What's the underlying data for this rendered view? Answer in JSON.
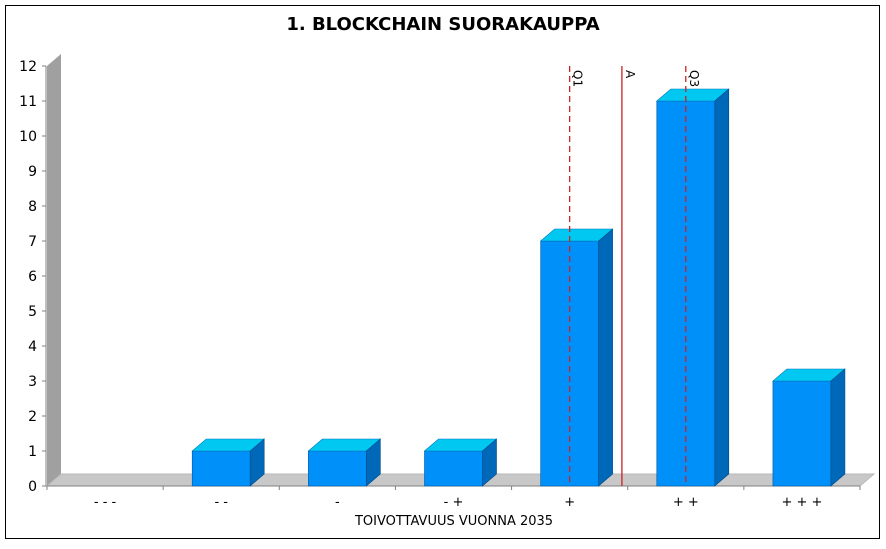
{
  "chart_data": {
    "type": "bar",
    "title": "1. BLOCKCHAIN SUORAKAUPPA",
    "xlabel": "TOIVOTTAVUUS VUONNA 2035",
    "ylabel": "",
    "categories": [
      "- - -",
      "- -",
      "-",
      "- +",
      "+",
      "+ +",
      "+ + +"
    ],
    "values": [
      0,
      1,
      1,
      1,
      7,
      11,
      3
    ],
    "ylim": [
      0,
      12
    ],
    "yticks": [
      0,
      1,
      2,
      3,
      4,
      5,
      6,
      7,
      8,
      9,
      10,
      11,
      12
    ],
    "grid": false,
    "markers": [
      {
        "label": "Q1",
        "position": 4.0,
        "style": "dashed"
      },
      {
        "label": "A",
        "position": 4.45,
        "style": "solid"
      },
      {
        "label": "Q3",
        "position": 5.0,
        "style": "dashed"
      }
    ],
    "colors": {
      "bar_front": "#0090fa",
      "bar_top": "#00c8f0",
      "bar_side": "#0068b8",
      "marker_line": "#cc2222",
      "floor": "#c8c8c8",
      "wall": "#a0a0a0"
    }
  }
}
